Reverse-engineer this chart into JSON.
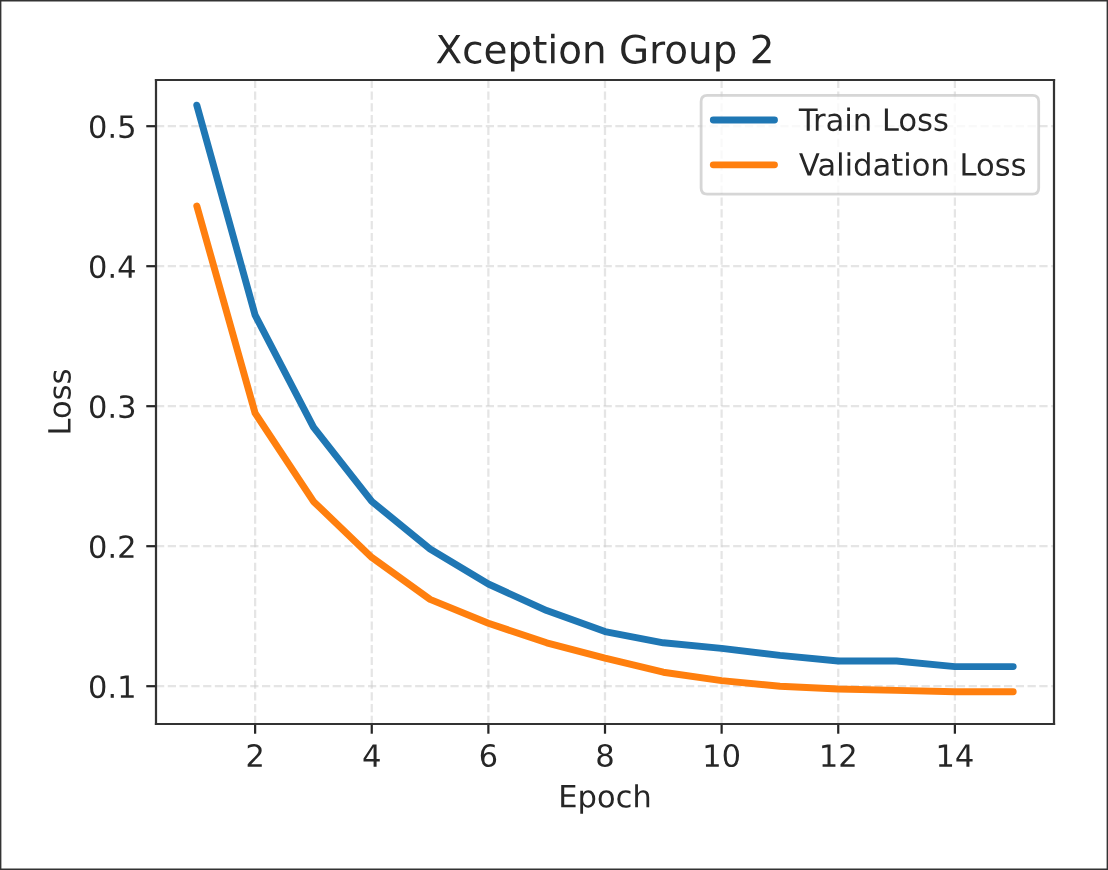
{
  "chart_data": {
    "type": "line",
    "title": "Xception Group 2",
    "xlabel": "Epoch",
    "ylabel": "Loss",
    "x": [
      1,
      2,
      3,
      4,
      5,
      6,
      7,
      8,
      9,
      10,
      11,
      12,
      13,
      14,
      15
    ],
    "series": [
      {
        "name": "Train Loss",
        "color": "#1f77b4",
        "values": [
          0.515,
          0.365,
          0.285,
          0.232,
          0.198,
          0.173,
          0.154,
          0.139,
          0.131,
          0.127,
          0.122,
          0.118,
          0.118,
          0.114,
          0.114
        ]
      },
      {
        "name": "Validation Loss",
        "color": "#ff7f0e",
        "values": [
          0.443,
          0.295,
          0.232,
          0.192,
          0.162,
          0.145,
          0.131,
          0.12,
          0.11,
          0.104,
          0.1,
          0.098,
          0.097,
          0.096,
          0.096
        ]
      }
    ],
    "xlim": [
      0.3,
      15.7
    ],
    "ylim": [
      0.073,
      0.533
    ],
    "xticks": [
      2,
      4,
      6,
      8,
      10,
      12,
      14
    ],
    "yticks": [
      0.1,
      0.2,
      0.3,
      0.4,
      0.5
    ],
    "grid": true,
    "legend": "top right",
    "line_style": "solid",
    "marker": "none"
  }
}
